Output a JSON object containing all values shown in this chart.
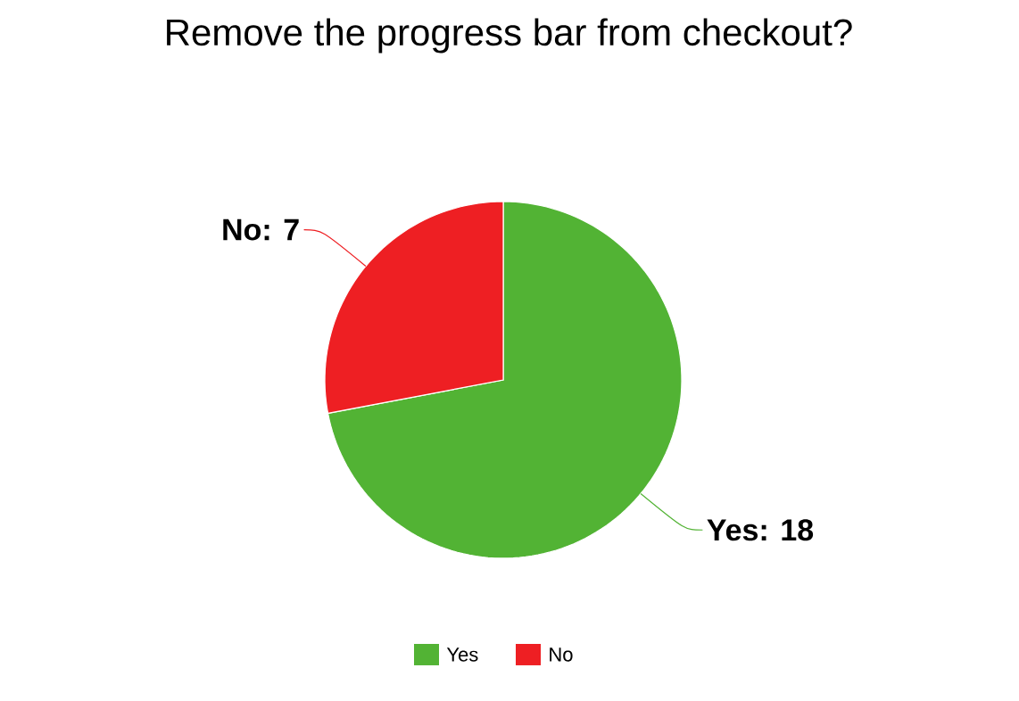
{
  "chart_data": {
    "type": "pie",
    "title": "Remove the progress bar from checkout?",
    "categories": [
      "Yes",
      "No"
    ],
    "values": [
      18,
      7
    ],
    "colors": [
      "#52b334",
      "#ee1f23"
    ],
    "data_labels": true,
    "value_labels": [
      "Yes: 18",
      "No: 7"
    ],
    "legend": "bottom"
  }
}
